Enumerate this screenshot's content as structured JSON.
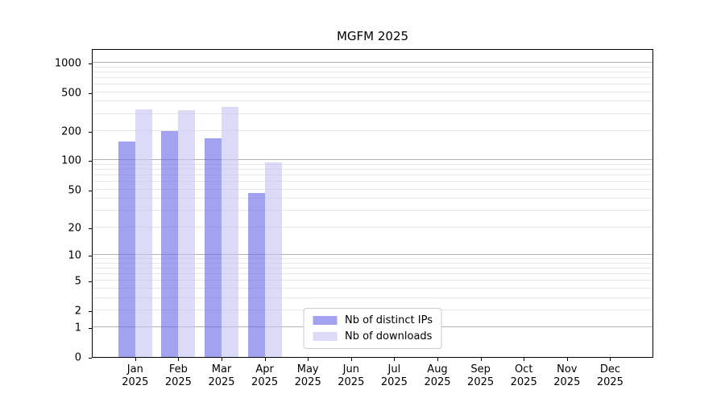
{
  "title": "MGFM 2025",
  "chart_data": {
    "type": "bar",
    "title": "MGFM 2025",
    "scale": "log10(value+1)",
    "categories": [
      "Jan",
      "Feb",
      "Mar",
      "Apr",
      "May",
      "Jun",
      "Jul",
      "Aug",
      "Sep",
      "Oct",
      "Nov",
      "Dec"
    ],
    "category_year": "2025",
    "series": [
      {
        "name": "Nb of distinct IPs",
        "color": "#6969e6",
        "alpha": 0.62,
        "values": [
          155,
          200,
          170,
          46,
          null,
          null,
          null,
          null,
          null,
          null,
          null,
          null
        ]
      },
      {
        "name": "Nb of downloads",
        "color": "#c5c5f4",
        "alpha": 0.62,
        "values": [
          335,
          327,
          353,
          96,
          null,
          null,
          null,
          null,
          null,
          null,
          null,
          null
        ]
      }
    ],
    "y_ticks": [
      0,
      1,
      2,
      5,
      10,
      20,
      50,
      100,
      200,
      500,
      1000
    ],
    "ylim": [
      0,
      1350
    ],
    "grid": {
      "major_color": "#b0b0b0",
      "minor_color": "#e8e8e8",
      "major_at": [
        1,
        10,
        100,
        1000
      ]
    },
    "legend_position": "lower center",
    "xlabel": "",
    "ylabel": ""
  }
}
